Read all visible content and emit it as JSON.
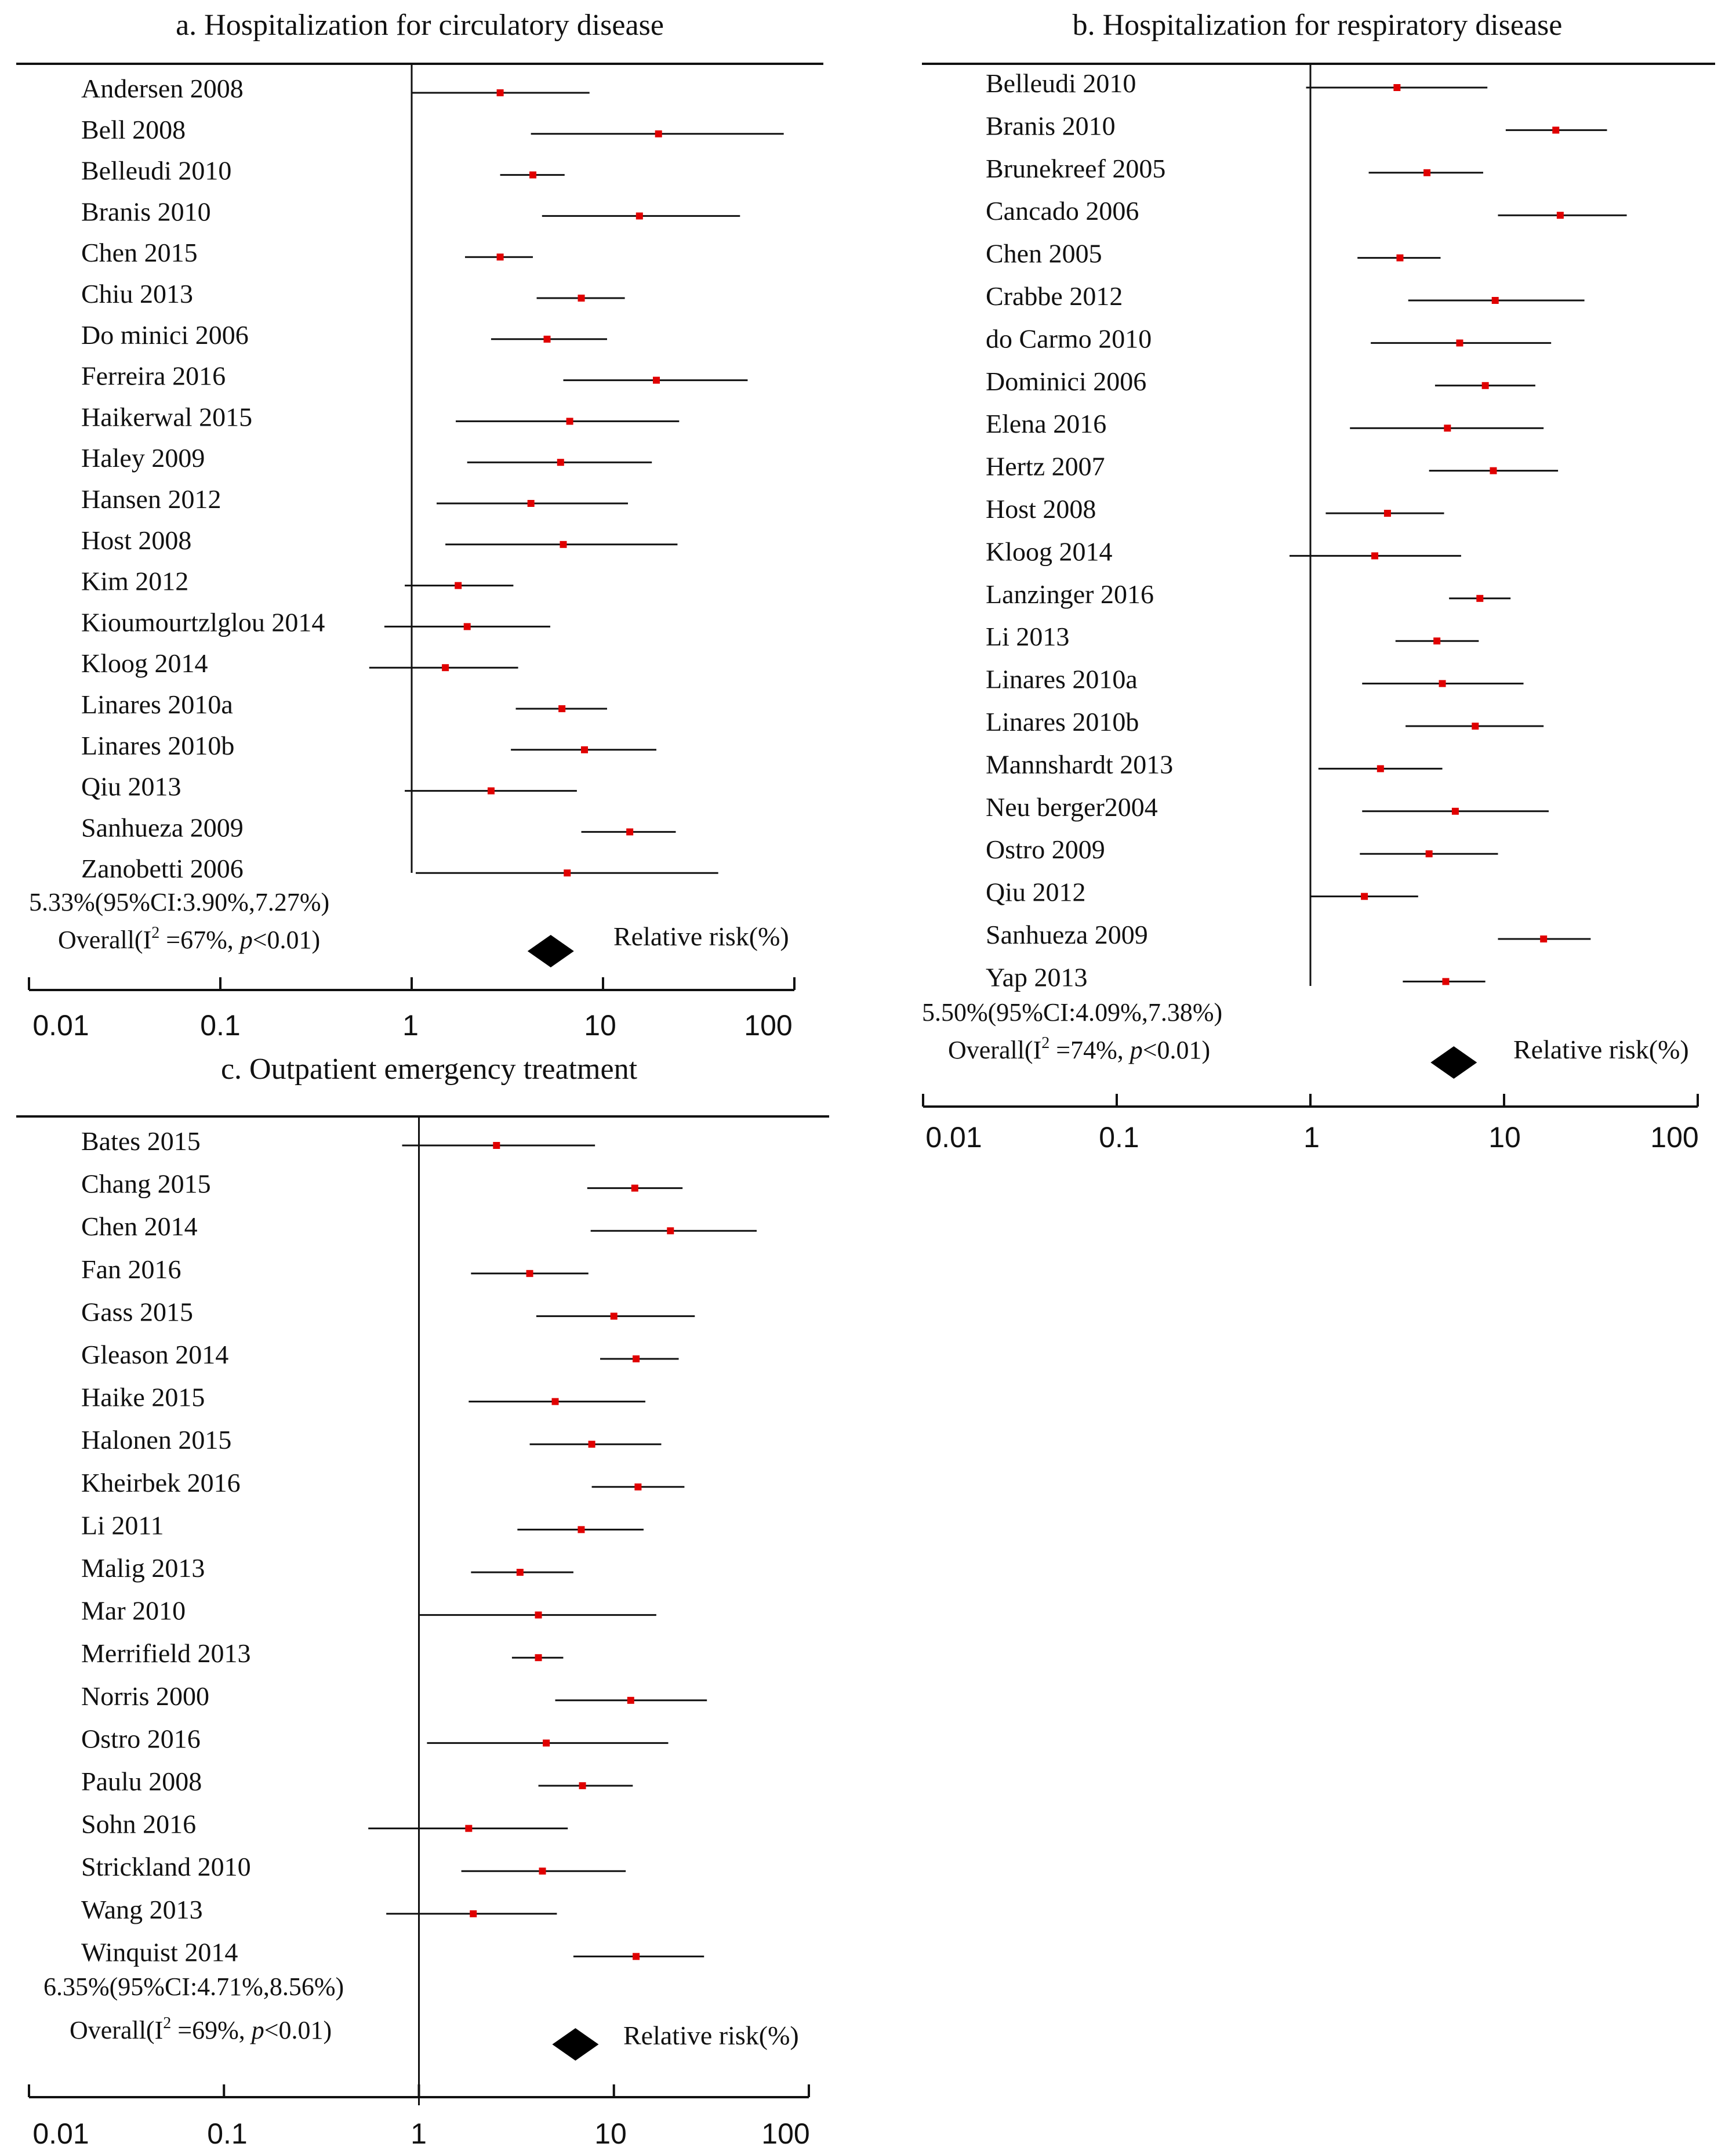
{
  "chart_data": [
    {
      "type": "forest",
      "title": "a. Hospitalization for circulatory disease",
      "scale": "log",
      "xlim": [
        0.01,
        100
      ],
      "ticks": [
        "0.01",
        "0.1",
        "1",
        "10",
        "100"
      ],
      "legend": "Relative risk(%)",
      "studies": [
        {
          "label": "Andersen 2008",
          "estimate": 2.9,
          "lower": 1.0,
          "upper": 8.5
        },
        {
          "label": "Bell 2008",
          "estimate": 19.5,
          "lower": 4.2,
          "upper": 88
        },
        {
          "label": "Belleudi 2010",
          "estimate": 4.3,
          "lower": 2.9,
          "upper": 6.3
        },
        {
          "label": "Branis 2010",
          "estimate": 15.5,
          "lower": 4.8,
          "upper": 52
        },
        {
          "label": "Chen 2015",
          "estimate": 2.9,
          "lower": 1.9,
          "upper": 4.3
        },
        {
          "label": "Chiu 2013",
          "estimate": 7.7,
          "lower": 4.5,
          "upper": 13
        },
        {
          "label": "Do minici 2006",
          "estimate": 5.1,
          "lower": 2.6,
          "upper": 10.5
        },
        {
          "label": "Ferreira 2016",
          "estimate": 19,
          "lower": 6.2,
          "upper": 57
        },
        {
          "label": "Haikerwal 2015",
          "estimate": 6.7,
          "lower": 1.7,
          "upper": 25
        },
        {
          "label": "Haley 2009",
          "estimate": 6.0,
          "lower": 1.95,
          "upper": 18
        },
        {
          "label": "Hansen 2012",
          "estimate": 4.2,
          "lower": 1.35,
          "upper": 13.5
        },
        {
          "label": "Host 2008",
          "estimate": 6.2,
          "lower": 1.5,
          "upper": 24.5
        },
        {
          "label": "Kim 2012",
          "estimate": 1.75,
          "lower": 0.92,
          "upper": 3.4
        },
        {
          "label": "Kioumourtzlglou 2014",
          "estimate": 1.95,
          "lower": 0.72,
          "upper": 5.3
        },
        {
          "label": "Kloog 2014",
          "estimate": 1.5,
          "lower": 0.6,
          "upper": 3.6
        },
        {
          "label": "Linares 2010a",
          "estimate": 6.1,
          "lower": 3.5,
          "upper": 10.5
        },
        {
          "label": "Linares 2010b",
          "estimate": 8.0,
          "lower": 3.3,
          "upper": 19
        },
        {
          "label": "Qiu 2013",
          "estimate": 2.6,
          "lower": 0.92,
          "upper": 7.3
        },
        {
          "label": "Sanhueza 2009",
          "estimate": 13.8,
          "lower": 7.7,
          "upper": 24
        },
        {
          "label": "Zanobetti 2006",
          "estimate": 6.5,
          "lower": 1.05,
          "upper": 40
        }
      ],
      "pooled": {
        "text": "5.33%(95%CI:3.90%,7.27%)",
        "overall": "Overall(I² =67%, p<0.01)",
        "estimate": 5.33,
        "lower": 3.9,
        "upper": 7.27
      }
    },
    {
      "type": "forest",
      "title": "b. Hospitalization for respiratory disease",
      "scale": "log",
      "xlim": [
        0.01,
        100
      ],
      "ticks": [
        "0.01",
        "0.1",
        "1",
        "10",
        "100"
      ],
      "legend": "Relative risk(%)",
      "studies": [
        {
          "label": "Belleudi 2010",
          "estimate": 2.8,
          "lower": 0.95,
          "upper": 8.2
        },
        {
          "label": "Branis 2010",
          "estimate": 18.5,
          "lower": 10.2,
          "upper": 34
        },
        {
          "label": "Brunekreef 2005",
          "estimate": 4.0,
          "lower": 2.0,
          "upper": 7.8
        },
        {
          "label": "Cancado 2006",
          "estimate": 19.5,
          "lower": 9.3,
          "upper": 43
        },
        {
          "label": "Chen 2005",
          "estimate": 2.9,
          "lower": 1.75,
          "upper": 4.7
        },
        {
          "label": "Crabbe 2012",
          "estimate": 9.0,
          "lower": 3.2,
          "upper": 26
        },
        {
          "label": "do Carmo 2010",
          "estimate": 5.9,
          "lower": 2.05,
          "upper": 17.5
        },
        {
          "label": "Dominici 2006",
          "estimate": 8.0,
          "lower": 4.4,
          "upper": 14.5
        },
        {
          "label": "Elena 2016",
          "estimate": 5.1,
          "lower": 1.6,
          "upper": 16
        },
        {
          "label": "Hertz 2007",
          "estimate": 8.8,
          "lower": 4.1,
          "upper": 19
        },
        {
          "label": "Host 2008",
          "estimate": 2.5,
          "lower": 1.2,
          "upper": 4.9
        },
        {
          "label": "Kloog 2014",
          "estimate": 2.15,
          "lower": 0.78,
          "upper": 6.0
        },
        {
          "label": "Lanzinger 2016",
          "estimate": 7.5,
          "lower": 5.2,
          "upper": 10.8
        },
        {
          "label": "Li 2013",
          "estimate": 4.5,
          "lower": 2.75,
          "upper": 7.4
        },
        {
          "label": "Linares 2010a",
          "estimate": 4.8,
          "lower": 1.85,
          "upper": 12.6
        },
        {
          "label": "Linares 2010b",
          "estimate": 7.1,
          "lower": 3.1,
          "upper": 16
        },
        {
          "label": "Mannshardt 2013",
          "estimate": 2.3,
          "lower": 1.1,
          "upper": 4.8
        },
        {
          "label": "Neu berger2004",
          "estimate": 5.6,
          "lower": 1.85,
          "upper": 17
        },
        {
          "label": "Ostro 2009",
          "estimate": 4.1,
          "lower": 1.8,
          "upper": 9.3
        },
        {
          "label": "Qiu 2012",
          "estimate": 1.9,
          "lower": 1.0,
          "upper": 3.6
        },
        {
          "label": "Sanhueza 2009",
          "estimate": 16,
          "lower": 9.3,
          "upper": 28
        },
        {
          "label": "Yap 2013",
          "estimate": 5.0,
          "lower": 3.0,
          "upper": 8.0
        }
      ],
      "pooled": {
        "text": "5.50%(95%CI:4.09%,7.38%)",
        "overall": "Overall(I² =74%, p<0.01)",
        "estimate": 5.5,
        "lower": 4.09,
        "upper": 7.38
      }
    },
    {
      "type": "forest",
      "title": "c. Outpatient emergency treatment",
      "scale": "log",
      "xlim": [
        0.01,
        100
      ],
      "ticks": [
        "0.01",
        "0.1",
        "1",
        "10",
        "100"
      ],
      "legend": "Relative risk(%)",
      "studies": [
        {
          "label": "Bates 2015",
          "estimate": 2.5,
          "lower": 0.82,
          "upper": 8.0
        },
        {
          "label": "Chang 2015",
          "estimate": 12.8,
          "lower": 7.3,
          "upper": 22.5
        },
        {
          "label": "Chen 2014",
          "estimate": 19.5,
          "lower": 7.6,
          "upper": 54
        },
        {
          "label": "Fan 2016",
          "estimate": 3.7,
          "lower": 1.85,
          "upper": 7.4
        },
        {
          "label": "Gass 2015",
          "estimate": 10,
          "lower": 4.0,
          "upper": 26
        },
        {
          "label": "Gleason 2014",
          "estimate": 13,
          "lower": 8.5,
          "upper": 21.5
        },
        {
          "label": "Haike  2015",
          "estimate": 5.0,
          "lower": 1.8,
          "upper": 14.5
        },
        {
          "label": "Halonen 2015",
          "estimate": 7.7,
          "lower": 3.7,
          "upper": 17.5
        },
        {
          "label": "Kheirbek 2016",
          "estimate": 13.3,
          "lower": 7.7,
          "upper": 23
        },
        {
          "label": "Li 2011",
          "estimate": 6.8,
          "lower": 3.2,
          "upper": 14.2
        },
        {
          "label": "Malig 2013",
          "estimate": 3.3,
          "lower": 1.85,
          "upper": 6.2
        },
        {
          "label": "Mar 2010",
          "estimate": 4.1,
          "lower": 1.0,
          "upper": 16.5
        },
        {
          "label": "Merrifield 2013",
          "estimate": 4.1,
          "lower": 3.0,
          "upper": 5.5
        },
        {
          "label": "Norris 2000",
          "estimate": 12.2,
          "lower": 5.0,
          "upper": 30
        },
        {
          "label": "Ostro 2016",
          "estimate": 4.5,
          "lower": 1.1,
          "upper": 19
        },
        {
          "label": "Paulu 2008",
          "estimate": 6.9,
          "lower": 4.1,
          "upper": 12.5
        },
        {
          "label": "Sohn 2016",
          "estimate": 1.8,
          "lower": 0.55,
          "upper": 5.8
        },
        {
          "label": "Strickland 2010",
          "estimate": 4.3,
          "lower": 1.65,
          "upper": 11.5
        },
        {
          "label": "Wang 2013",
          "estimate": 1.9,
          "lower": 0.68,
          "upper": 5.1
        },
        {
          "label": "Winquist 2014",
          "estimate": 13,
          "lower": 6.2,
          "upper": 29
        }
      ],
      "pooled": {
        "text": "6.35%(95%CI:4.71%,8.56%)",
        "overall": "Overall(I² =69%, p<0.01)",
        "estimate": 6.35,
        "lower": 4.71,
        "upper": 8.56
      }
    }
  ],
  "colors": {
    "estimate_marker": "#e00000",
    "ci_line": "#111111",
    "diamond": "#000000",
    "axis": "#111111"
  }
}
